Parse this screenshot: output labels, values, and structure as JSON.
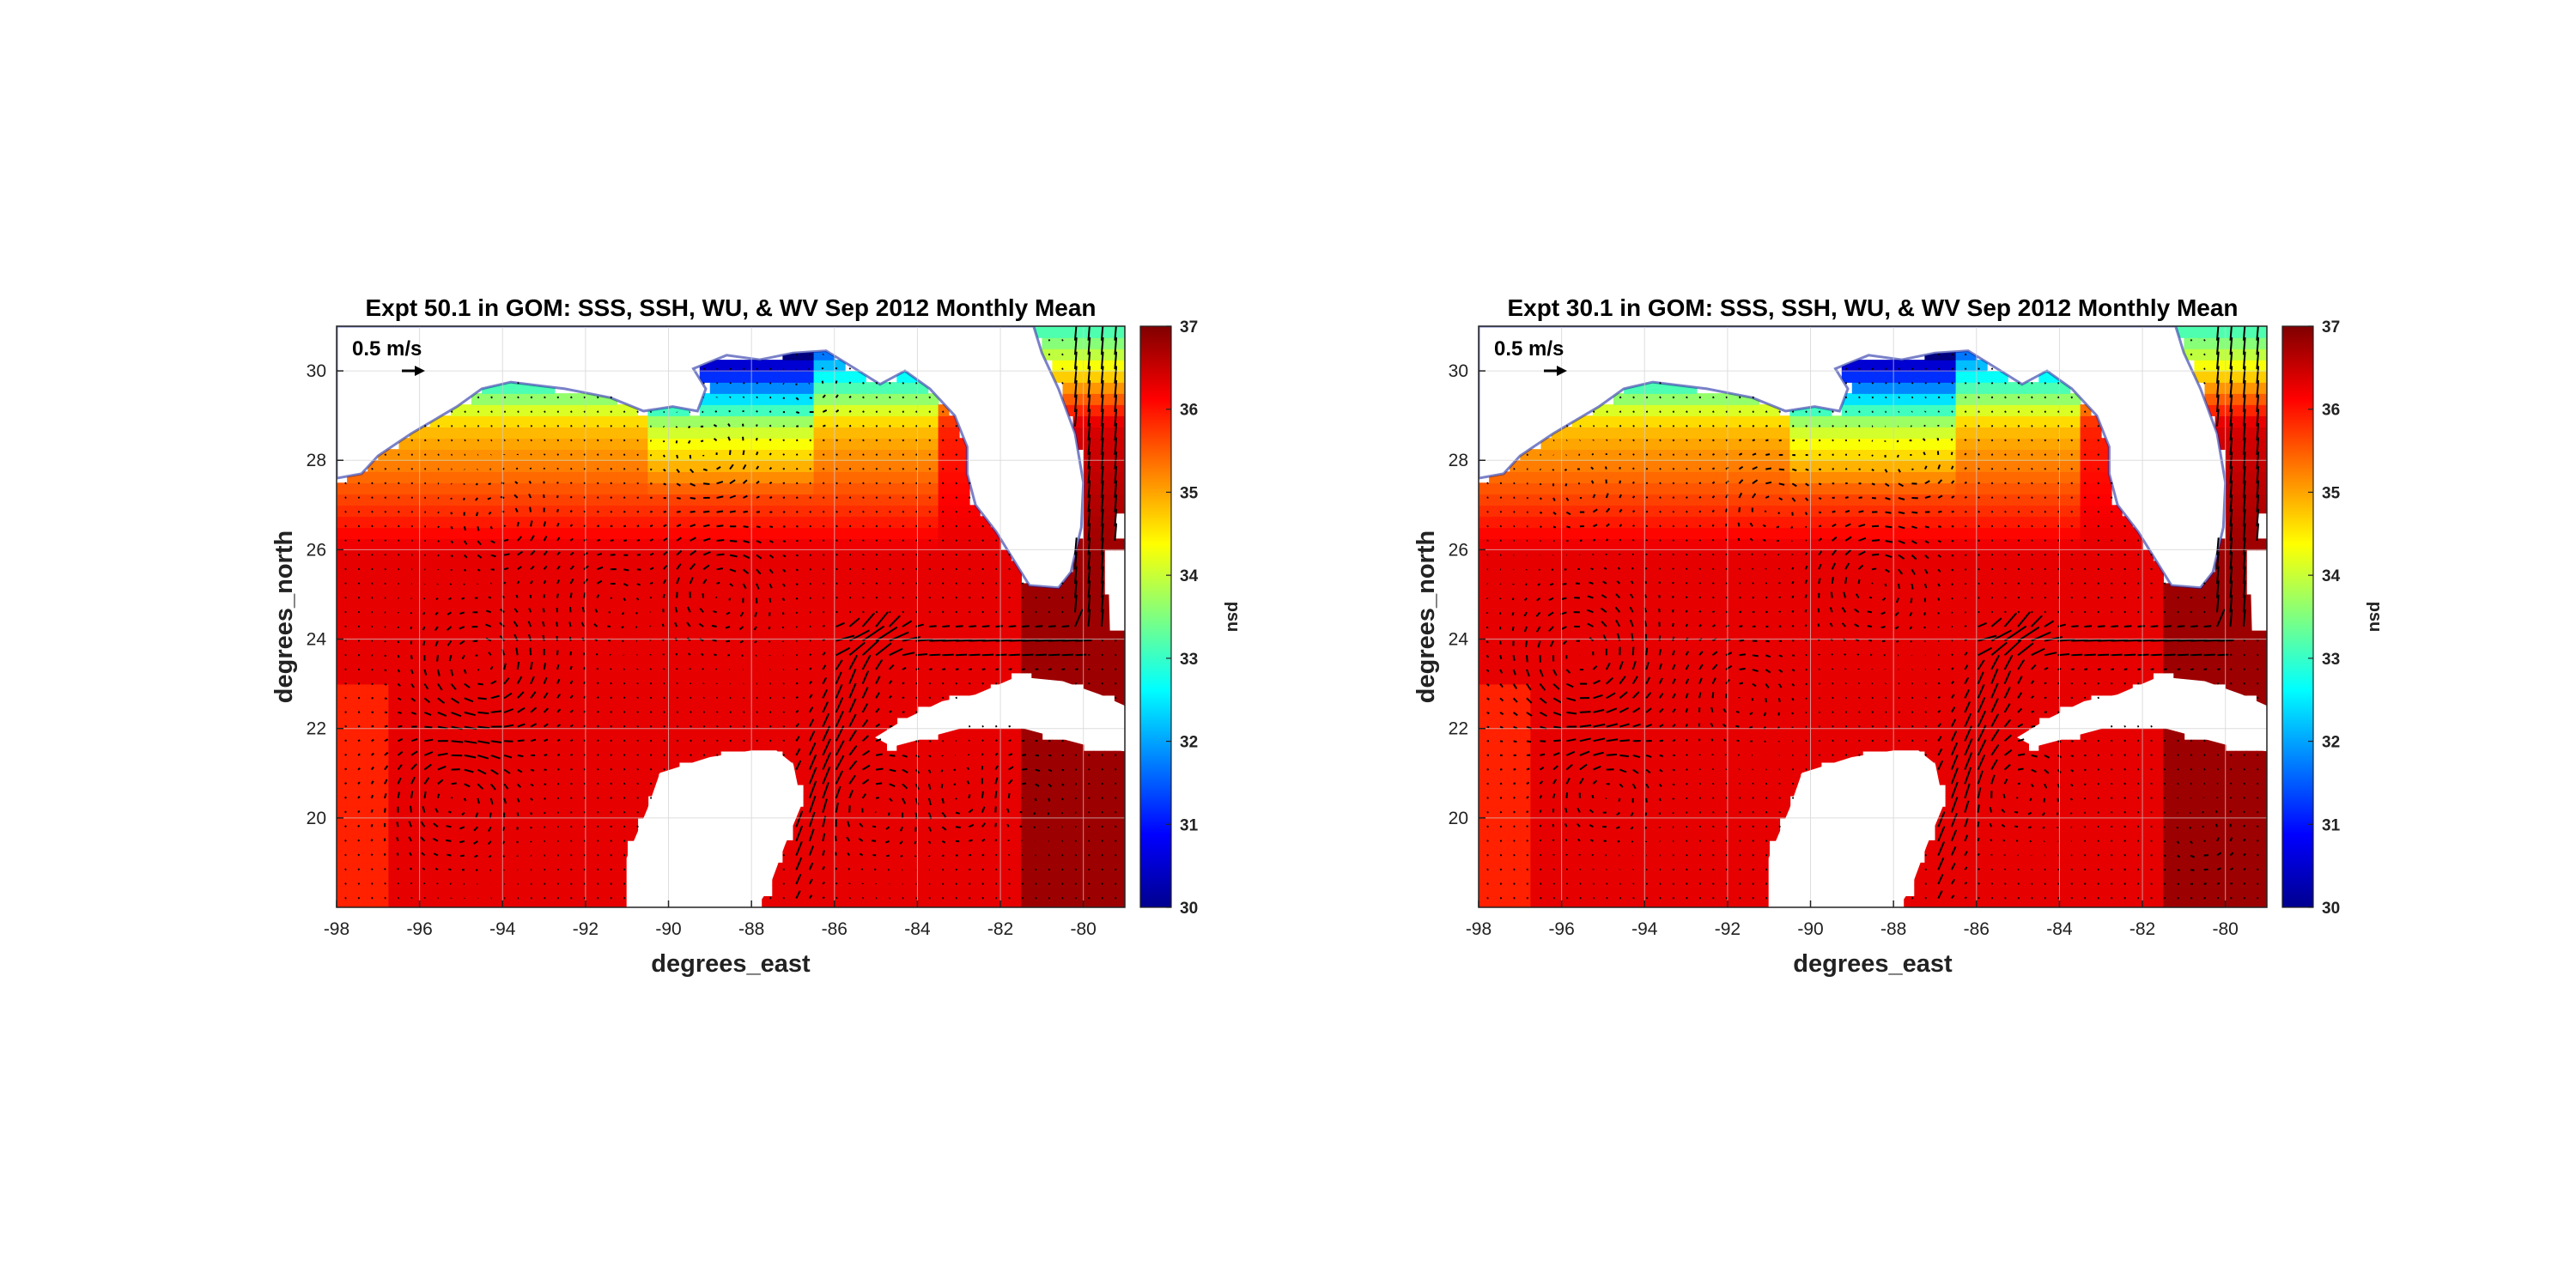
{
  "chart_data": [
    {
      "type": "heatmap",
      "title": "Expt 50.1 in GOM: SSS, SSH, WU, & WV Sep 2012 Monthly Mean",
      "xlabel": "degrees_east",
      "ylabel": "degrees_north",
      "xlim": [
        -98,
        -79
      ],
      "ylim": [
        18,
        31
      ],
      "xticks": [
        "-98",
        "-96",
        "-94",
        "-92",
        "-90",
        "-88",
        "-86",
        "-84",
        "-82",
        "-80"
      ],
      "yticks": [
        "20",
        "22",
        "24",
        "26",
        "28",
        "30"
      ],
      "grid": true,
      "colorbar": {
        "label": "psu",
        "min": 30,
        "max": 37,
        "ticks": [
          "30",
          "31",
          "32",
          "33",
          "34",
          "35",
          "36",
          "37"
        ],
        "colormap": "jet"
      },
      "vector_reference": "0.5 m/s",
      "eddies": [
        {
          "lon": -95.2,
          "lat": 20.5,
          "r": 1.2,
          "dir": -1
        },
        {
          "lon": -94.5,
          "lat": 23.3,
          "r": 1.3,
          "dir": 1
        },
        {
          "lon": -91.5,
          "lat": 24.9,
          "r": 0.8,
          "dir": -1
        },
        {
          "lon": -88.8,
          "lat": 25.1,
          "r": 1.1,
          "dir": -1
        },
        {
          "lon": -94.0,
          "lat": 26.5,
          "r": 0.9,
          "dir": 1
        },
        {
          "lon": -89.0,
          "lat": 28.0,
          "r": 0.8,
          "dir": 1
        },
        {
          "lon": -85.0,
          "lat": 20.3,
          "r": 1.0,
          "dir": -1
        },
        {
          "lon": -83.0,
          "lat": 20.4,
          "r": 0.7,
          "dir": 1
        },
        {
          "lon": -81.5,
          "lat": 20.5,
          "r": 0.7,
          "dir": -1
        },
        {
          "lon": -86.5,
          "lat": 29.5,
          "r": 0.5,
          "dir": 1
        }
      ]
    },
    {
      "type": "heatmap",
      "title": "Expt 30.1 in GOM: SSS, SSH, WU, & WV Sep 2012 Monthly Mean",
      "xlabel": "degrees_east",
      "ylabel": "degrees_north",
      "xlim": [
        -98,
        -79
      ],
      "ylim": [
        18,
        31
      ],
      "xticks": [
        "-98",
        "-96",
        "-94",
        "-92",
        "-90",
        "-88",
        "-86",
        "-84",
        "-82",
        "-80"
      ],
      "yticks": [
        "20",
        "22",
        "24",
        "26",
        "28",
        "30"
      ],
      "grid": true,
      "colorbar": {
        "label": "psu",
        "min": 30,
        "max": 37,
        "ticks": [
          "30",
          "31",
          "32",
          "33",
          "34",
          "35",
          "36",
          "37"
        ],
        "colormap": "jet"
      },
      "vector_reference": "0.5 m/s",
      "eddies": [
        {
          "lon": -95.0,
          "lat": 20.7,
          "r": 1.0,
          "dir": -1
        },
        {
          "lon": -95.5,
          "lat": 23.5,
          "r": 1.4,
          "dir": 1
        },
        {
          "lon": -91.7,
          "lat": 22.8,
          "r": 0.9,
          "dir": -1
        },
        {
          "lon": -88.5,
          "lat": 25.3,
          "r": 1.1,
          "dir": -1
        },
        {
          "lon": -95.5,
          "lat": 27.2,
          "r": 0.7,
          "dir": 1
        },
        {
          "lon": -91.0,
          "lat": 27.0,
          "r": 0.8,
          "dir": -1
        },
        {
          "lon": -87.5,
          "lat": 27.8,
          "r": 0.7,
          "dir": 1
        },
        {
          "lon": -85.0,
          "lat": 20.7,
          "r": 0.9,
          "dir": -1
        },
        {
          "lon": -80.5,
          "lat": 19.5,
          "r": 0.6,
          "dir": 1
        }
      ]
    }
  ]
}
